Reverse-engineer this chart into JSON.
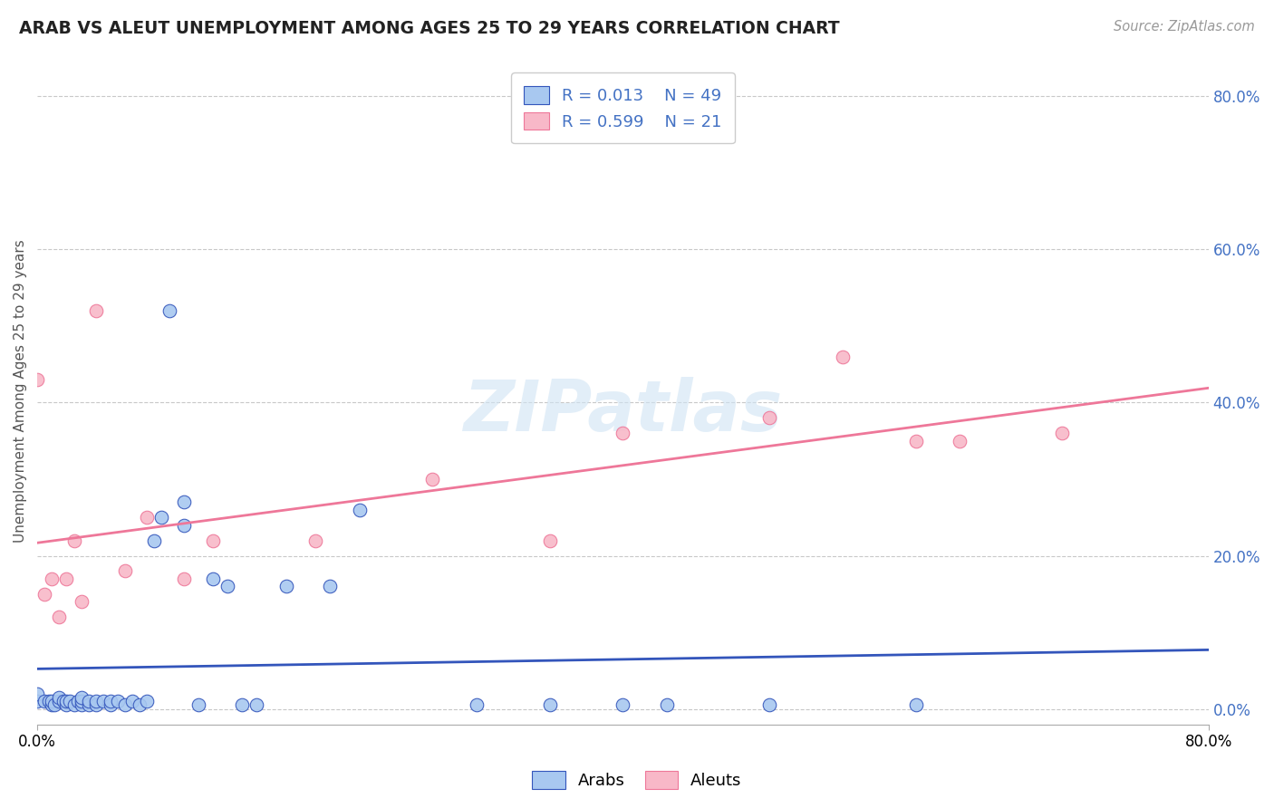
{
  "title": "ARAB VS ALEUT UNEMPLOYMENT AMONG AGES 25 TO 29 YEARS CORRELATION CHART",
  "source_text": "Source: ZipAtlas.com",
  "ylabel": "Unemployment Among Ages 25 to 29 years",
  "xlim": [
    0.0,
    0.8
  ],
  "ylim": [
    -0.02,
    0.85
  ],
  "y_ticks": [
    0.0,
    0.2,
    0.4,
    0.6,
    0.8
  ],
  "grid_color": "#c8c8c8",
  "background_color": "#ffffff",
  "arab_color": "#a8c8f0",
  "aleut_color": "#f8b8c8",
  "arab_line_color": "#3355bb",
  "aleut_line_color": "#ee7799",
  "arab_R": 0.013,
  "arab_N": 49,
  "aleut_R": 0.599,
  "aleut_N": 21,
  "arab_scatter_x": [
    0.0,
    0.0,
    0.005,
    0.008,
    0.01,
    0.01,
    0.012,
    0.015,
    0.015,
    0.018,
    0.02,
    0.02,
    0.022,
    0.025,
    0.028,
    0.03,
    0.03,
    0.03,
    0.035,
    0.035,
    0.04,
    0.04,
    0.045,
    0.05,
    0.05,
    0.055,
    0.06,
    0.065,
    0.07,
    0.075,
    0.08,
    0.085,
    0.09,
    0.1,
    0.1,
    0.11,
    0.12,
    0.13,
    0.14,
    0.15,
    0.17,
    0.2,
    0.22,
    0.3,
    0.35,
    0.4,
    0.43,
    0.5,
    0.6
  ],
  "arab_scatter_y": [
    0.01,
    0.02,
    0.01,
    0.01,
    0.005,
    0.01,
    0.005,
    0.01,
    0.015,
    0.01,
    0.005,
    0.01,
    0.01,
    0.005,
    0.01,
    0.005,
    0.01,
    0.015,
    0.005,
    0.01,
    0.005,
    0.01,
    0.01,
    0.005,
    0.01,
    0.01,
    0.005,
    0.01,
    0.005,
    0.01,
    0.22,
    0.25,
    0.52,
    0.27,
    0.24,
    0.005,
    0.17,
    0.16,
    0.005,
    0.005,
    0.16,
    0.16,
    0.26,
    0.005,
    0.005,
    0.005,
    0.005,
    0.005,
    0.005
  ],
  "aleut_scatter_x": [
    0.0,
    0.005,
    0.01,
    0.015,
    0.02,
    0.025,
    0.03,
    0.04,
    0.06,
    0.075,
    0.1,
    0.12,
    0.19,
    0.27,
    0.35,
    0.4,
    0.5,
    0.55,
    0.6,
    0.63,
    0.7
  ],
  "aleut_scatter_y": [
    0.43,
    0.15,
    0.17,
    0.12,
    0.17,
    0.22,
    0.14,
    0.52,
    0.18,
    0.25,
    0.17,
    0.22,
    0.22,
    0.3,
    0.22,
    0.36,
    0.38,
    0.46,
    0.35,
    0.35,
    0.36
  ]
}
